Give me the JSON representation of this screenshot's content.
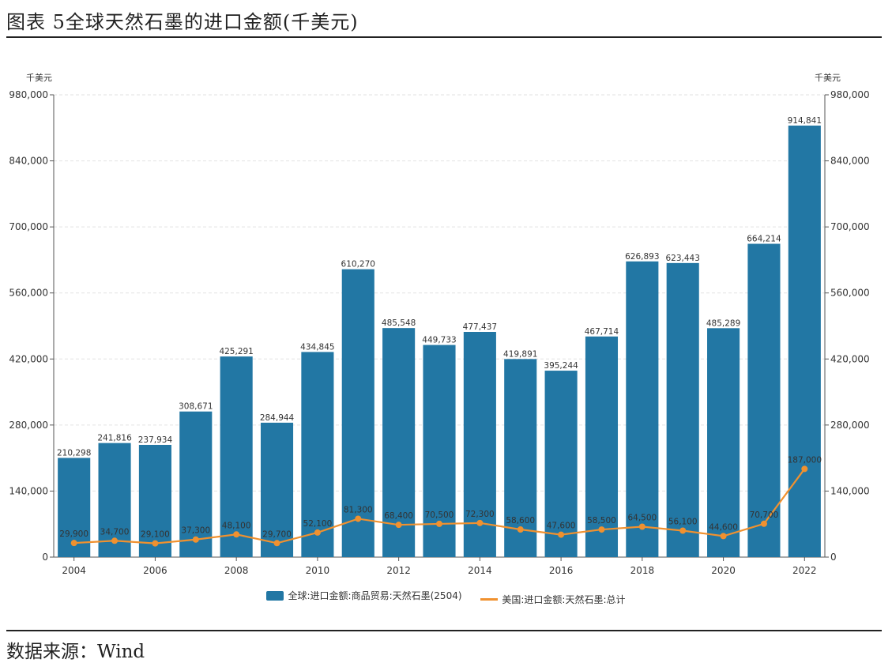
{
  "page": {
    "title": "图表 5全球天然石墨的进口金额(千美元)",
    "source": "数据来源：Wind"
  },
  "chart_data": {
    "type": "bar",
    "categories": [
      "2004",
      "2005",
      "2006",
      "2007",
      "2008",
      "2009",
      "2010",
      "2011",
      "2012",
      "2013",
      "2014",
      "2015",
      "2016",
      "2017",
      "2018",
      "2019",
      "2020",
      "2021",
      "2022"
    ],
    "x_tick_labels": [
      "2004",
      "2006",
      "2008",
      "2010",
      "2012",
      "2014",
      "2016",
      "2018",
      "2020",
      "2022"
    ],
    "series": [
      {
        "name": "全球:进口金额:商品贸易:天然石墨(2504)",
        "type": "bar",
        "axis": "left",
        "color": "#2277a4",
        "values": [
          210298,
          241816,
          237934,
          308671,
          425291,
          284944,
          434845,
          610270,
          485548,
          449733,
          477437,
          419891,
          395244,
          467714,
          626893,
          623443,
          485289,
          664214,
          914841
        ],
        "labels": [
          "210,298",
          "241,816",
          "237,934",
          "308,671",
          "425,291",
          "284,944",
          "434,845",
          "610,270",
          "485,548",
          "449,733",
          "477,437",
          "419,891",
          "395,244",
          "467,714",
          "626,893",
          "623,443",
          "485,289",
          "664,214",
          "914,841"
        ]
      },
      {
        "name": "美国:进口金额:天然石墨:总计",
        "type": "line",
        "axis": "right",
        "color": "#f0912f",
        "values": [
          29900,
          34700,
          29100,
          37300,
          48100,
          29700,
          52100,
          81300,
          68400,
          70500,
          72300,
          58600,
          47600,
          58500,
          64500,
          56100,
          44600,
          70700,
          187000
        ],
        "labels": [
          "29,900",
          "34,700",
          "29,100",
          "37,300",
          "48,100",
          "29,700",
          "52,100",
          "81,300",
          "68,400",
          "70,500",
          "72,300",
          "58,600",
          "47,600",
          "58,500",
          "64,500",
          "56,100",
          "44,600",
          "70,700",
          "187,000"
        ]
      }
    ],
    "ylabel_left": "千美元",
    "ylabel_right": "千美元",
    "ylim": [
      0,
      980000
    ],
    "yticks": [
      0,
      140000,
      280000,
      420000,
      560000,
      700000,
      840000,
      980000
    ],
    "ytick_labels": [
      "0",
      "140,000",
      "280,000",
      "420,000",
      "560,000",
      "700,000",
      "840,000",
      "980,000"
    ],
    "grid": true,
    "legend": "bottom-center"
  }
}
